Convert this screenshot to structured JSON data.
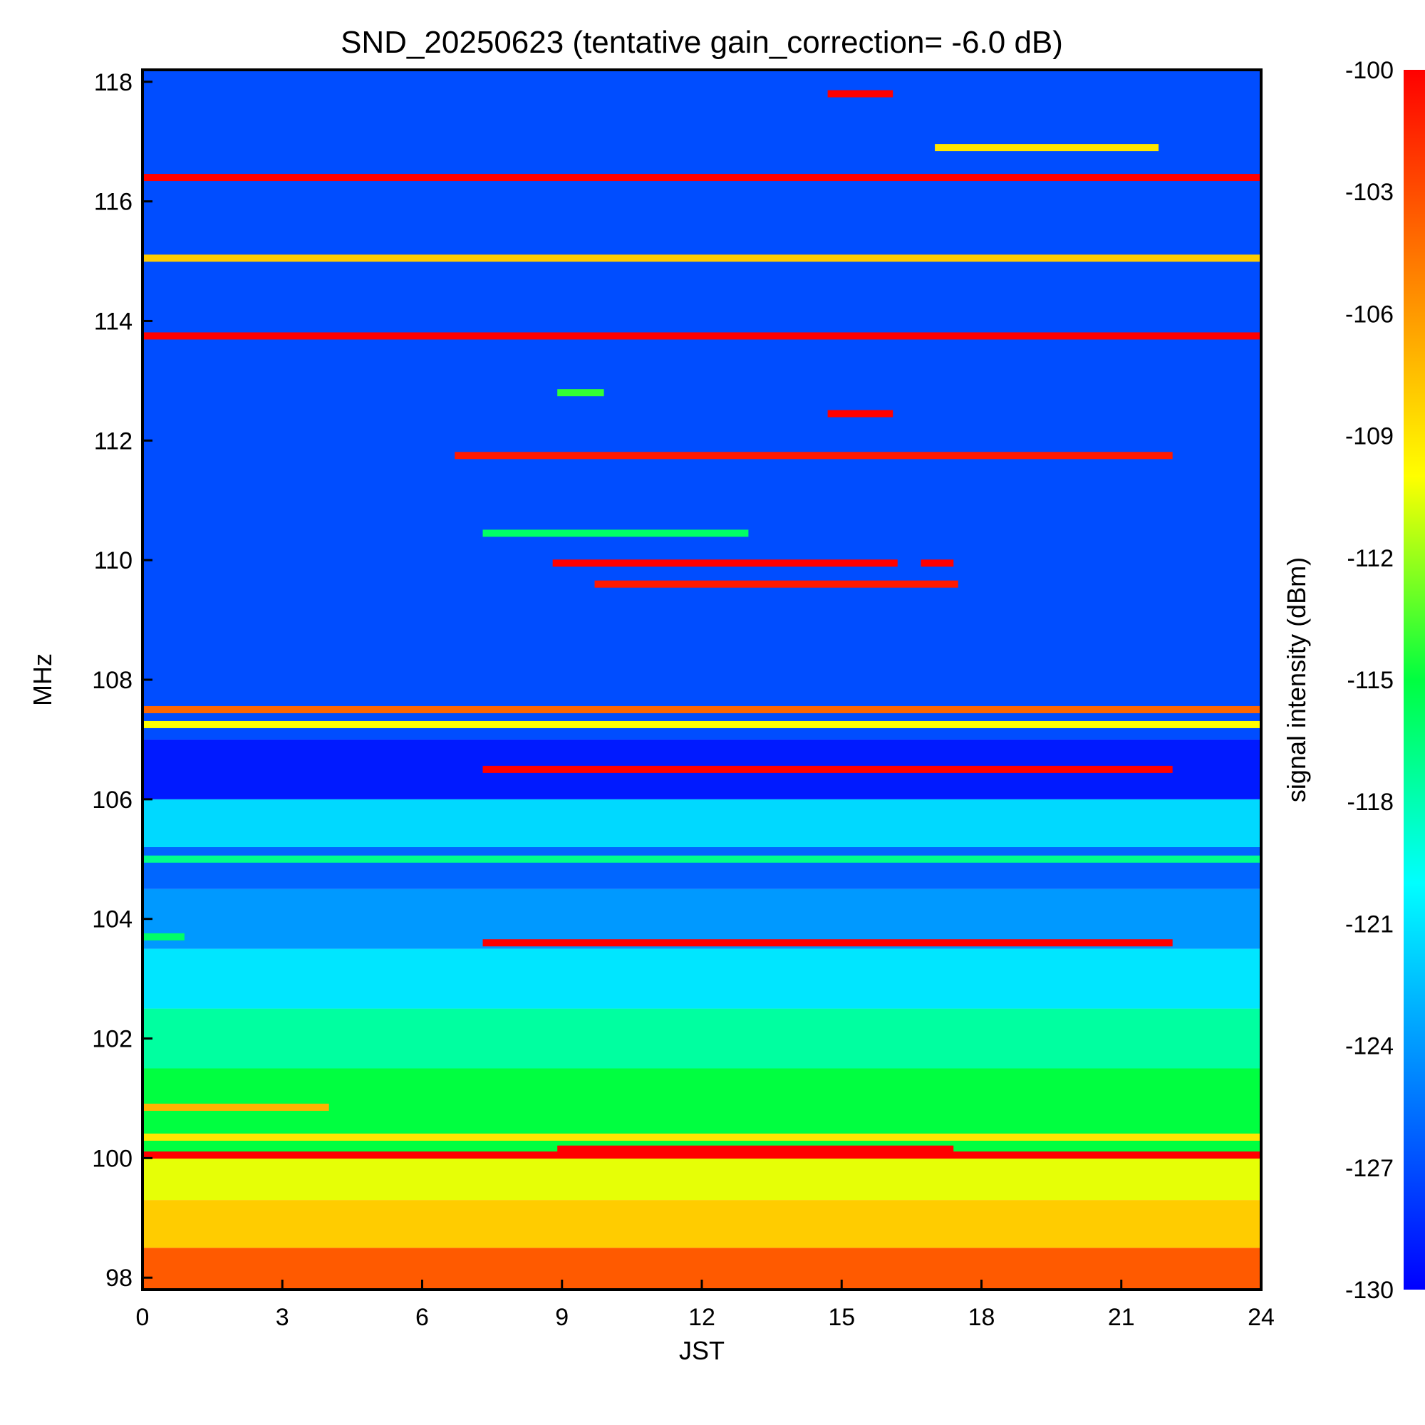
{
  "chart_data": {
    "type": "heatmap",
    "title": "SND_20250623 (tentative gain_correction= -6.0 dB)",
    "xlabel": "JST",
    "ylabel": "MHz",
    "colorbar_label": "signal intensity (dBm)",
    "xlim": [
      0,
      24
    ],
    "ylim": [
      97.8,
      118.2
    ],
    "clim": [
      -130,
      -100
    ],
    "x_ticks": [
      "0",
      "3",
      "6",
      "9",
      "12",
      "15",
      "18",
      "21",
      "24"
    ],
    "y_ticks": [
      "98",
      "100",
      "102",
      "104",
      "106",
      "108",
      "110",
      "112",
      "114",
      "116",
      "118"
    ],
    "colorbar_ticks": [
      "-100",
      "-103",
      "-106",
      "-109",
      "-112",
      "-115",
      "-118",
      "-121",
      "-124",
      "-127",
      "-130"
    ],
    "grid": false,
    "colormap": [
      "#0000ff",
      "#0080ff",
      "#00ffff",
      "#00ff40",
      "#ffff00",
      "#ff8000",
      "#ff0000"
    ],
    "background_levels": [
      {
        "f_min": 97.8,
        "f_max": 98.5,
        "dbm": -103.5
      },
      {
        "f_min": 98.5,
        "f_max": 99.3,
        "dbm": -108
      },
      {
        "f_min": 99.3,
        "f_max": 100.0,
        "dbm": -110.5
      },
      {
        "f_min": 100.0,
        "f_max": 101.5,
        "dbm": -115
      },
      {
        "f_min": 101.5,
        "f_max": 102.5,
        "dbm": -117.5
      },
      {
        "f_min": 102.5,
        "f_max": 103.5,
        "dbm": -121
      },
      {
        "f_min": 103.5,
        "f_max": 104.5,
        "dbm": -124
      },
      {
        "f_min": 104.5,
        "f_max": 105.2,
        "dbm": -126
      },
      {
        "f_min": 105.2,
        "f_max": 106.0,
        "dbm": -121.5
      },
      {
        "f_min": 106.0,
        "f_max": 107.0,
        "dbm": -129
      },
      {
        "f_min": 107.0,
        "f_max": 108.0,
        "dbm": -127
      },
      {
        "f_min": 108.0,
        "f_max": 118.2,
        "dbm": -127
      }
    ],
    "signals": [
      {
        "freq": 116.4,
        "t_start": 0,
        "t_end": 24,
        "dbm": -100
      },
      {
        "freq": 115.05,
        "t_start": 0,
        "t_end": 24,
        "dbm": -108
      },
      {
        "freq": 113.75,
        "t_start": 0,
        "t_end": 24,
        "dbm": -100
      },
      {
        "freq": 117.8,
        "t_start": 14.7,
        "t_end": 16.1,
        "dbm": -100
      },
      {
        "freq": 116.9,
        "t_start": 17.0,
        "t_end": 21.8,
        "dbm": -109
      },
      {
        "freq": 112.45,
        "t_start": 14.7,
        "t_end": 16.1,
        "dbm": -100
      },
      {
        "freq": 112.8,
        "t_start": 8.9,
        "t_end": 9.9,
        "dbm": -114
      },
      {
        "freq": 111.75,
        "t_start": 6.7,
        "t_end": 22.1,
        "dbm": -101
      },
      {
        "freq": 110.45,
        "t_start": 7.3,
        "t_end": 13.0,
        "dbm": -116
      },
      {
        "freq": 109.95,
        "t_start": 8.8,
        "t_end": 16.2,
        "dbm": -100
      },
      {
        "freq": 109.95,
        "t_start": 16.7,
        "t_end": 17.4,
        "dbm": -100
      },
      {
        "freq": 109.6,
        "t_start": 9.7,
        "t_end": 17.5,
        "dbm": -101
      },
      {
        "freq": 107.5,
        "t_start": 0,
        "t_end": 24,
        "dbm": -104
      },
      {
        "freq": 107.25,
        "t_start": 0,
        "t_end": 24,
        "dbm": -110
      },
      {
        "freq": 106.5,
        "t_start": 7.3,
        "t_end": 22.1,
        "dbm": -100
      },
      {
        "freq": 105.0,
        "t_start": 0,
        "t_end": 24,
        "dbm": -117
      },
      {
        "freq": 103.6,
        "t_start": 7.3,
        "t_end": 22.1,
        "dbm": -100
      },
      {
        "freq": 103.7,
        "t_start": 0,
        "t_end": 0.9,
        "dbm": -116
      },
      {
        "freq": 100.85,
        "t_start": 0,
        "t_end": 4.0,
        "dbm": -107
      },
      {
        "freq": 100.35,
        "t_start": 0,
        "t_end": 24,
        "dbm": -109
      },
      {
        "freq": 100.05,
        "t_start": 0,
        "t_end": 24,
        "dbm": -100
      },
      {
        "freq": 100.15,
        "t_start": 8.9,
        "t_end": 17.4,
        "dbm": -100
      }
    ]
  }
}
